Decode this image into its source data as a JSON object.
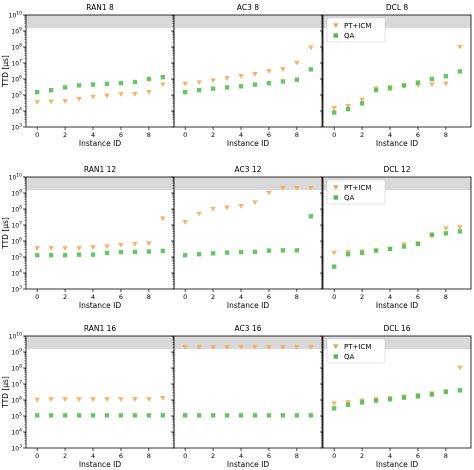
{
  "figure": {
    "colors": {
      "pt_icm": "#f5a455",
      "qa": "#4fba4f",
      "shade": "#d9d9d9",
      "axis": "#000000"
    },
    "y_ticks": [
      {
        "exp": 3,
        "base": "10",
        "sup": "3"
      },
      {
        "exp": 4,
        "base": "10",
        "sup": "4"
      },
      {
        "exp": 5,
        "base": "10",
        "sup": "5"
      },
      {
        "exp": 6,
        "base": "10",
        "sup": "6"
      },
      {
        "exp": 7,
        "base": "10",
        "sup": "7"
      },
      {
        "exp": 8,
        "base": "10",
        "sup": "8"
      },
      {
        "exp": 9,
        "base": "10",
        "sup": "9"
      },
      {
        "exp": 10,
        "base": "10",
        "sup": "10"
      }
    ],
    "x_ticks": [
      "0",
      "2",
      "4",
      "6",
      "8"
    ]
  },
  "chart_data": [
    {
      "type": "scatter",
      "title": "RAN1 8",
      "xlabel": "Instance ID",
      "ylabel": "TTD [μs]",
      "y_scale": "log",
      "ylim": [
        1000,
        10000000000
      ],
      "xlim": [
        -0.8,
        9.8
      ],
      "shaded_band_y": [
        1500000000,
        10000000000
      ],
      "legend": null,
      "series": [
        {
          "name": "PT+ICM",
          "marker": "triangle-down",
          "x": [
            0,
            1,
            2,
            3,
            4,
            5,
            6,
            7,
            8,
            9
          ],
          "y": [
            35000,
            38000,
            40000,
            55000,
            75000,
            90000,
            110000,
            110000,
            150000,
            450000
          ]
        },
        {
          "name": "QA",
          "marker": "square",
          "x": [
            0,
            1,
            2,
            3,
            4,
            5,
            6,
            7,
            8,
            9
          ],
          "y": [
            150000,
            200000,
            300000,
            400000,
            450000,
            500000,
            550000,
            650000,
            1000000,
            1300000
          ]
        }
      ]
    },
    {
      "type": "scatter",
      "title": "AC3 8",
      "xlabel": "Instance ID",
      "ylabel": "",
      "y_scale": "log",
      "ylim": [
        1000,
        10000000000
      ],
      "xlim": [
        -0.8,
        9.8
      ],
      "shaded_band_y": [
        1500000000,
        10000000000
      ],
      "legend": null,
      "series": [
        {
          "name": "PT+ICM",
          "marker": "triangle-down",
          "x": [
            0,
            1,
            2,
            3,
            4,
            5,
            6,
            7,
            8,
            9
          ],
          "y": [
            500000,
            600000,
            800000,
            1100000,
            1500000,
            2000000,
            3000000,
            4000000,
            10000000,
            90000000
          ]
        },
        {
          "name": "QA",
          "marker": "square",
          "x": [
            0,
            1,
            2,
            3,
            4,
            5,
            6,
            7,
            8,
            9
          ],
          "y": [
            150000,
            200000,
            250000,
            300000,
            350000,
            450000,
            550000,
            700000,
            900000,
            4000000
          ]
        }
      ]
    },
    {
      "type": "scatter",
      "title": "DCL 8",
      "xlabel": "Instance ID",
      "ylabel": "",
      "y_scale": "log",
      "ylim": [
        1000,
        10000000000
      ],
      "xlim": [
        -0.8,
        9.8
      ],
      "shaded_band_y": [
        1500000000,
        10000000000
      ],
      "legend": {
        "position": "top-left",
        "entries": [
          "PT+ICM",
          "QA"
        ]
      },
      "series": [
        {
          "name": "PT+ICM",
          "marker": "triangle-down",
          "x": [
            0,
            1,
            2,
            3,
            4,
            5,
            6,
            7,
            8,
            9
          ],
          "y": [
            15000,
            20000,
            50000,
            250000,
            300000,
            350000,
            400000,
            450000,
            500000,
            100000000
          ]
        },
        {
          "name": "QA",
          "marker": "square",
          "x": [
            0,
            1,
            2,
            3,
            4,
            5,
            6,
            7,
            8,
            9
          ],
          "y": [
            8000,
            13000,
            30000,
            200000,
            260000,
            400000,
            600000,
            1000000,
            1500000,
            3000000
          ]
        }
      ]
    },
    {
      "type": "scatter",
      "title": "RAN1 12",
      "xlabel": "Instance ID",
      "ylabel": "TTD [μs]",
      "y_scale": "log",
      "ylim": [
        1000,
        10000000000
      ],
      "xlim": [
        -0.8,
        9.8
      ],
      "shaded_band_y": [
        1500000000,
        10000000000
      ],
      "legend": null,
      "series": [
        {
          "name": "PT+ICM",
          "marker": "triangle-down",
          "x": [
            0,
            1,
            2,
            3,
            4,
            5,
            6,
            7,
            8,
            9
          ],
          "y": [
            350000,
            350000,
            350000,
            350000,
            400000,
            450000,
            550000,
            650000,
            700000,
            25000000
          ]
        },
        {
          "name": "QA",
          "marker": "square",
          "x": [
            0,
            1,
            2,
            3,
            4,
            5,
            6,
            7,
            8,
            9
          ],
          "y": [
            130000,
            130000,
            130000,
            140000,
            140000,
            180000,
            200000,
            210000,
            220000,
            240000
          ]
        }
      ]
    },
    {
      "type": "scatter",
      "title": "AC3 12",
      "xlabel": "Instance ID",
      "ylabel": "",
      "y_scale": "log",
      "ylim": [
        1000,
        10000000000
      ],
      "xlim": [
        -0.8,
        9.8
      ],
      "shaded_band_y": [
        1500000000,
        10000000000
      ],
      "legend": null,
      "series": [
        {
          "name": "PT+ICM",
          "marker": "triangle-down",
          "x": [
            0,
            1,
            2,
            3,
            4,
            5,
            6,
            7,
            8,
            9
          ],
          "y": [
            15000000,
            50000000,
            100000000,
            120000000,
            150000000,
            250000000,
            1000000000,
            2000000000,
            2000000000,
            2000000000
          ]
        },
        {
          "name": "QA",
          "marker": "square",
          "x": [
            0,
            1,
            2,
            3,
            4,
            5,
            6,
            7,
            8,
            9
          ],
          "y": [
            130000,
            150000,
            170000,
            190000,
            200000,
            210000,
            250000,
            260000,
            260000,
            35000000
          ]
        }
      ]
    },
    {
      "type": "scatter",
      "title": "DCL 12",
      "xlabel": "Instance ID",
      "ylabel": "",
      "y_scale": "log",
      "ylim": [
        1000,
        10000000000
      ],
      "xlim": [
        -0.8,
        9.8
      ],
      "shaded_band_y": [
        1500000000,
        10000000000
      ],
      "legend": {
        "position": "top-left",
        "entries": [
          "PT+ICM",
          "QA"
        ]
      },
      "series": [
        {
          "name": "PT+ICM",
          "marker": "triangle-down",
          "x": [
            0,
            1,
            2,
            3,
            4,
            5,
            6,
            7,
            8,
            9
          ],
          "y": [
            180000,
            200000,
            220000,
            250000,
            300000,
            600000,
            700000,
            2000000,
            6000000,
            7000000
          ]
        },
        {
          "name": "QA",
          "marker": "square",
          "x": [
            0,
            1,
            2,
            3,
            4,
            5,
            6,
            7,
            8,
            9
          ],
          "y": [
            25000,
            150000,
            180000,
            250000,
            320000,
            450000,
            650000,
            2500000,
            3000000,
            4000000
          ]
        }
      ]
    },
    {
      "type": "scatter",
      "title": "RAN1 16",
      "xlabel": "Instance ID",
      "ylabel": "TTD [μs]",
      "y_scale": "log",
      "ylim": [
        1000,
        10000000000
      ],
      "xlim": [
        -0.8,
        9.8
      ],
      "shaded_band_y": [
        1500000000,
        10000000000
      ],
      "legend": null,
      "series": [
        {
          "name": "PT+ICM",
          "marker": "triangle-down",
          "x": [
            0,
            1,
            2,
            3,
            4,
            5,
            6,
            7,
            8,
            9
          ],
          "y": [
            1000000,
            1100000,
            1100000,
            1100000,
            1100000,
            1100000,
            1100000,
            1100000,
            1100000,
            1300000
          ]
        },
        {
          "name": "QA",
          "marker": "square",
          "x": [
            0,
            1,
            2,
            3,
            4,
            5,
            6,
            7,
            8,
            9
          ],
          "y": [
            110000,
            110000,
            110000,
            110000,
            110000,
            110000,
            110000,
            110000,
            110000,
            110000
          ]
        }
      ]
    },
    {
      "type": "scatter",
      "title": "AC3 16",
      "xlabel": "Instance ID",
      "ylabel": "",
      "y_scale": "log",
      "ylim": [
        1000,
        10000000000
      ],
      "xlim": [
        -0.8,
        9.8
      ],
      "shaded_band_y": [
        1500000000,
        10000000000
      ],
      "legend": null,
      "series": [
        {
          "name": "PT+ICM",
          "marker": "triangle-down",
          "x": [
            0,
            1,
            2,
            3,
            4,
            5,
            6,
            7,
            8,
            9
          ],
          "y": [
            2000000000,
            2000000000,
            2000000000,
            2000000000,
            2000000000,
            2000000000,
            2000000000,
            2000000000,
            2000000000,
            2000000000
          ]
        },
        {
          "name": "QA",
          "marker": "square",
          "x": [
            0,
            1,
            2,
            3,
            4,
            5,
            6,
            7,
            8,
            9
          ],
          "y": [
            110000,
            110000,
            110000,
            110000,
            110000,
            110000,
            110000,
            110000,
            110000,
            110000
          ]
        }
      ]
    },
    {
      "type": "scatter",
      "title": "DCL 16",
      "xlabel": "Instance ID",
      "ylabel": "",
      "y_scale": "log",
      "ylim": [
        1000,
        10000000000
      ],
      "xlim": [
        -0.8,
        9.8
      ],
      "shaded_band_y": [
        1500000000,
        10000000000
      ],
      "legend": {
        "position": "top-left",
        "entries": [
          "PT+ICM",
          "QA"
        ]
      },
      "series": [
        {
          "name": "PT+ICM",
          "marker": "triangle-down",
          "x": [
            0,
            1,
            2,
            3,
            4,
            5,
            6,
            7,
            8,
            9
          ],
          "y": [
            600000,
            700000,
            900000,
            1100000,
            1300000,
            1600000,
            2000000,
            2500000,
            3500000,
            100000000
          ]
        },
        {
          "name": "QA",
          "marker": "square",
          "x": [
            0,
            1,
            2,
            3,
            4,
            5,
            6,
            7,
            8,
            9
          ],
          "y": [
            300000,
            500000,
            700000,
            900000,
            1100000,
            1400000,
            1700000,
            2200000,
            3200000,
            4000000
          ]
        }
      ]
    }
  ]
}
